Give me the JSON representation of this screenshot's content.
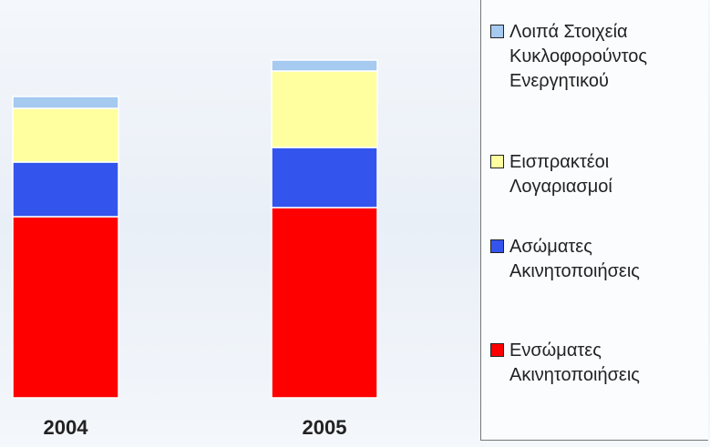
{
  "chart_data": {
    "type": "stacked_bar",
    "categories": [
      "2004",
      "2005"
    ],
    "series": [
      {
        "name": "Ενσώματες Ακινητοποιήσεις",
        "color": "#ff0000",
        "values": [
          199,
          209
        ]
      },
      {
        "name": "Ασώματες Ακινητοποιήσεις",
        "color": "#3355ee",
        "values": [
          60,
          66
        ]
      },
      {
        "name": "Εισπρακτέοι Λογαριασμοί",
        "color": "#ffffa0",
        "values": [
          59,
          84
        ]
      },
      {
        "name": "Λοιπά Στοιχεία Κυκλοφορούντος Ενεργητικού",
        "color": "#a6caf0",
        "values": [
          13,
          12
        ]
      }
    ]
  }
}
